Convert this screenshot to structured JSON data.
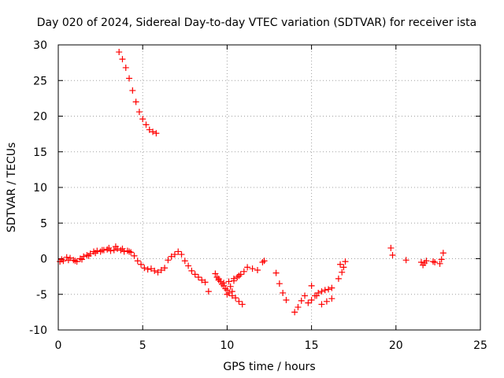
{
  "chart_data": {
    "type": "scatter",
    "title": "Day 020 of 2024, Sidereal Day-to-day VTEC variation (SDTVAR) for receiver ista",
    "xlabel": "GPS time / hours",
    "ylabel": "SDTVAR / TECUs",
    "xlim": [
      0,
      25
    ],
    "ylim": [
      -10,
      30
    ],
    "xticks": [
      0,
      5,
      10,
      15,
      20,
      25
    ],
    "xtick_labels": [
      "0",
      "5",
      "10",
      "15",
      "20",
      "25"
    ],
    "yticks": [
      -10,
      -5,
      0,
      5,
      10,
      15,
      20,
      25,
      30
    ],
    "ytick_labels": [
      "-10",
      "-5",
      "0",
      "5",
      "10",
      "15",
      "20",
      "25",
      "30"
    ],
    "grid": true,
    "marker": "plus",
    "series": [
      {
        "name": "SDTVAR",
        "color": "#ff0000",
        "x": [
          3.6,
          3.8,
          4.0,
          4.2,
          4.4,
          4.6,
          4.8,
          5.0,
          5.2,
          5.4,
          5.6,
          5.8,
          0.1,
          0.3,
          0.5,
          0.7,
          0.9,
          1.1,
          1.3,
          1.5,
          1.7,
          1.9,
          2.1,
          2.3,
          2.5,
          2.7,
          2.9,
          3.1,
          3.3,
          3.5,
          3.7,
          3.9,
          4.1,
          4.3,
          4.5,
          4.7,
          4.9,
          5.1,
          5.3,
          5.5,
          5.7,
          5.9,
          6.1,
          6.3,
          6.5,
          6.7,
          6.9,
          7.1,
          7.3,
          7.5,
          7.7,
          7.9,
          8.1,
          8.3,
          8.5,
          8.7,
          8.9,
          0.2,
          0.6,
          1.0,
          1.4,
          1.8,
          2.2,
          2.6,
          3.0,
          3.4,
          3.8,
          4.2,
          9.3,
          9.5,
          9.7,
          9.9,
          10.1,
          10.3,
          10.5,
          10.7,
          10.9,
          9.4,
          9.6,
          9.8,
          10.0,
          10.2,
          10.4,
          10.6,
          10.8,
          11.0,
          9.5,
          9.8,
          10.1,
          10.4,
          10.7,
          10.0,
          10.3,
          11.2,
          11.5,
          11.8,
          12.1,
          12.2,
          12.9,
          13.1,
          13.3,
          13.5,
          14.0,
          14.2,
          14.4,
          14.6,
          14.8,
          15.0,
          15.2,
          15.4,
          15.6,
          15.8,
          16.0,
          16.2,
          15.0,
          15.3,
          15.6,
          15.9,
          16.2,
          16.6,
          16.8,
          16.9,
          17.0,
          16.7,
          19.7,
          19.8,
          20.6,
          21.5,
          21.6,
          21.7,
          21.8,
          22.2,
          22.3,
          22.6,
          22.7,
          22.8
        ],
        "y": [
          29.0,
          28.0,
          26.8,
          25.3,
          23.6,
          22.0,
          20.6,
          19.6,
          18.8,
          18.1,
          17.8,
          17.6,
          -0.4,
          -0.3,
          0.2,
          0.1,
          -0.2,
          -0.4,
          0.0,
          0.3,
          0.5,
          0.7,
          1.0,
          1.1,
          1.0,
          1.2,
          1.3,
          1.1,
          1.2,
          1.4,
          1.2,
          1.0,
          1.1,
          0.9,
          0.4,
          -0.3,
          -0.8,
          -1.3,
          -1.5,
          -1.4,
          -1.7,
          -1.9,
          -1.6,
          -1.3,
          -0.2,
          0.3,
          0.6,
          1.0,
          0.6,
          -0.3,
          -1.0,
          -1.7,
          -2.2,
          -2.6,
          -3.0,
          -3.3,
          -4.6,
          -0.1,
          -0.2,
          -0.3,
          -0.1,
          0.4,
          0.8,
          1.2,
          1.5,
          1.7,
          1.4,
          1.0,
          -2.1,
          -2.8,
          -3.6,
          -4.2,
          -4.8,
          -5.2,
          -5.5,
          -6.0,
          -6.4,
          -2.6,
          -3.2,
          -3.8,
          -4.4,
          -3.9,
          -3.1,
          -2.6,
          -2.2,
          -1.8,
          -3.0,
          -3.4,
          -3.2,
          -2.8,
          -2.4,
          -5.0,
          -4.6,
          -1.2,
          -1.4,
          -1.6,
          -0.5,
          -0.3,
          -2.0,
          -3.5,
          -4.8,
          -5.8,
          -7.5,
          -6.8,
          -5.9,
          -5.2,
          -6.2,
          -5.8,
          -5.2,
          -4.8,
          -4.6,
          -4.4,
          -4.3,
          -4.1,
          -3.8,
          -5.2,
          -6.4,
          -6.0,
          -5.6,
          -2.8,
          -1.9,
          -1.2,
          -0.4,
          -0.8,
          1.5,
          0.5,
          -0.2,
          -0.5,
          -0.9,
          -0.6,
          -0.3,
          -0.4,
          -0.5,
          -0.7,
          -0.1,
          0.8
        ]
      }
    ]
  }
}
